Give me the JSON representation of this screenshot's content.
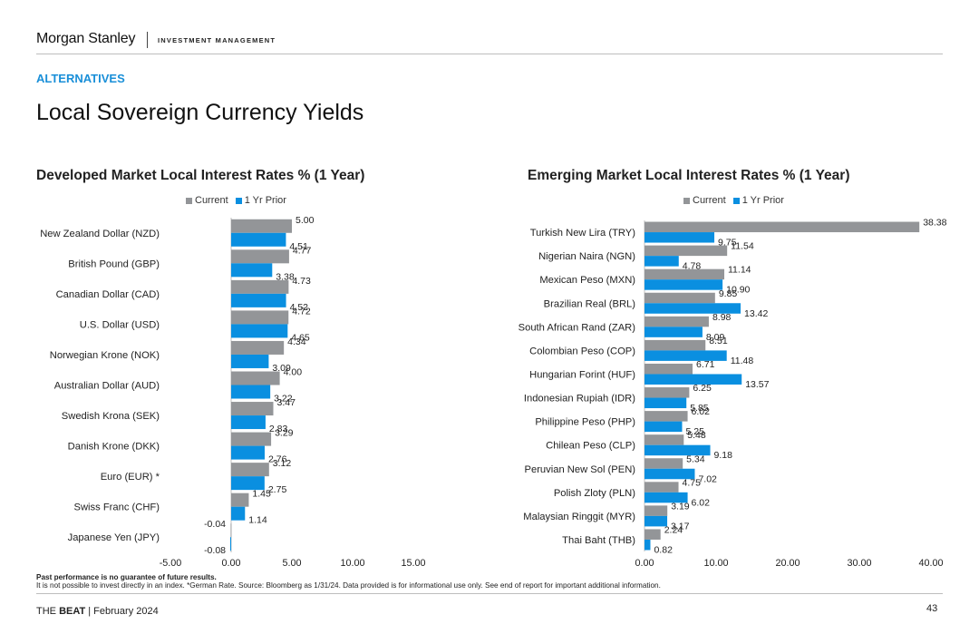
{
  "header": {
    "brand": "Morgan Stanley",
    "division": "INVESTMENT MANAGEMENT",
    "section": "ALTERNATIVES",
    "title": "Local Sovereign Currency Yields"
  },
  "colors": {
    "current": "#939598",
    "prior": "#0a8fe0",
    "accent": "#1a8fd8"
  },
  "legend": {
    "current": "Current",
    "prior": "1 Yr Prior"
  },
  "chart_data": [
    {
      "type": "bar",
      "orientation": "horizontal",
      "title": "Developed Market Local Interest Rates % (1 Year)",
      "categories": [
        "New Zealand Dollar (NZD)",
        "British Pound (GBP)",
        "Canadian Dollar (CAD)",
        "U.S. Dollar (USD)",
        "Norwegian Krone (NOK)",
        "Australian Dollar (AUD)",
        "Swedish Krona (SEK)",
        "Danish Krone (DKK)",
        "Euro (EUR) *",
        "Swiss Franc (CHF)",
        "Japanese Yen (JPY)"
      ],
      "series": [
        {
          "name": "Current",
          "values": [
            5.0,
            4.77,
            4.73,
            4.72,
            4.34,
            4.0,
            3.47,
            3.29,
            3.12,
            1.45,
            -0.04
          ]
        },
        {
          "name": "1 Yr Prior",
          "values": [
            4.51,
            3.38,
            4.52,
            4.65,
            3.09,
            3.22,
            2.83,
            2.76,
            2.75,
            1.14,
            -0.08
          ]
        }
      ],
      "xlim": [
        -5,
        15
      ],
      "ticks": [
        -5,
        0,
        5,
        10,
        15
      ],
      "tick_labels": [
        "-5.00",
        "0.00",
        "5.00",
        "10.00",
        "15.00"
      ],
      "legend_position": "top"
    },
    {
      "type": "bar",
      "orientation": "horizontal",
      "title": "Emerging Market Local Interest Rates % (1 Year)",
      "categories": [
        "Turkish New Lira (TRY)",
        "Nigerian Naira (NGN)",
        "Mexican Peso (MXN)",
        "Brazilian Real (BRL)",
        "South African Rand (ZAR)",
        "Colombian Peso (COP)",
        "Hungarian Forint (HUF)",
        "Indonesian Rupiah (IDR)",
        "Philippine Peso (PHP)",
        "Chilean Peso (CLP)",
        "Peruvian New Sol (PEN)",
        "Polish Zloty (PLN)",
        "Malaysian Ringgit (MYR)",
        "Thai Baht (THB)"
      ],
      "series": [
        {
          "name": "Current",
          "values": [
            38.38,
            11.54,
            11.14,
            9.85,
            8.98,
            8.51,
            6.71,
            6.25,
            6.02,
            5.48,
            5.34,
            4.75,
            3.19,
            2.24
          ]
        },
        {
          "name": "1 Yr Prior",
          "values": [
            9.75,
            4.78,
            10.9,
            13.42,
            8.09,
            11.48,
            13.57,
            5.85,
            5.25,
            9.18,
            7.02,
            6.02,
            3.17,
            0.82
          ]
        }
      ],
      "xlim": [
        0,
        40
      ],
      "ticks": [
        0,
        10,
        20,
        30,
        40
      ],
      "tick_labels": [
        "0.00",
        "10.00",
        "20.00",
        "30.00",
        "40.00"
      ],
      "legend_position": "top"
    }
  ],
  "notes": {
    "disclaimer_bold": "Past performance is no guarantee of future results.",
    "disclaimer": "It is not possible to invest directly in an index. *German Rate. Source: Bloomberg as 1/31/24. Data provided is for informational use only. See end of report for important additional information."
  },
  "footer": {
    "publication_prefix": "THE ",
    "publication_bold": "BEAT",
    "date": " | February 2024",
    "page_number": "43"
  }
}
